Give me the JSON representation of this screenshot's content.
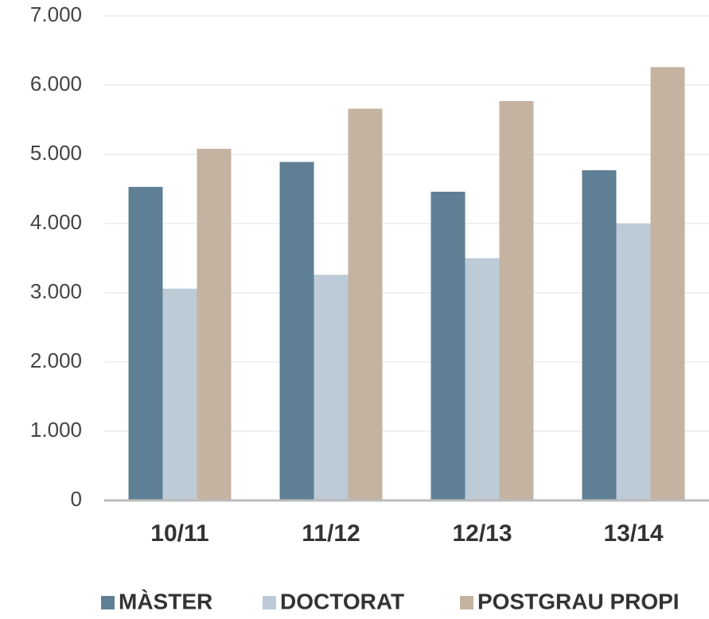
{
  "chart_data": {
    "type": "bar",
    "categories": [
      "10/11",
      "11/12",
      "12/13",
      "13/14"
    ],
    "series": [
      {
        "name": "MÀSTER",
        "color": "#5f7f95",
        "values": [
          4530,
          4890,
          4460,
          4770
        ]
      },
      {
        "name": "DOCTORAT",
        "color": "#bccbd6",
        "values": [
          3060,
          3260,
          3500,
          4000
        ]
      },
      {
        "name": "POSTGRAU PROPI",
        "color": "#c4b3a1",
        "values": [
          5080,
          5660,
          5770,
          6260
        ]
      }
    ],
    "ylim": [
      0,
      7000
    ],
    "yticks": [
      0,
      {
        "value": 1000,
        "label": "1.000"
      },
      {
        "value": 2000,
        "label": "2.000"
      },
      {
        "value": 3000,
        "label": "3.000"
      },
      {
        "value": 4000,
        "label": "4.000"
      },
      {
        "value": 5000,
        "label": "5.000"
      },
      {
        "value": 6000,
        "label": "6.000"
      },
      {
        "value": 7000,
        "label": "7.000"
      }
    ],
    "grid": true,
    "legend": "bottom"
  }
}
